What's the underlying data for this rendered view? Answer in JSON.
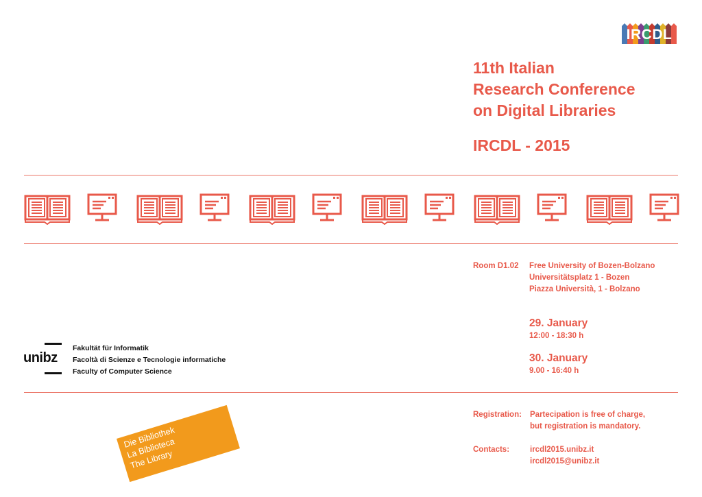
{
  "logo": {
    "text": "IRCDL",
    "stripe_colors": [
      "#4a7ab5",
      "#e8594a",
      "#f29a1c",
      "#7d3f8f",
      "#3a9c6e",
      "#c53c2e",
      "#2f5d8c",
      "#e0b22a",
      "#8c3b3b",
      "#e8594a"
    ]
  },
  "title": {
    "lines": [
      "11th Italian",
      "Research Conference",
      "on Digital Libraries"
    ],
    "subtitle": "IRCDL - 2015"
  },
  "icons": [
    "book-icon",
    "monitor-icon",
    "book-icon",
    "monitor-icon",
    "book-icon",
    "monitor-icon",
    "book-icon",
    "monitor-icon",
    "book-icon",
    "monitor-icon",
    "book-icon",
    "monitor-icon"
  ],
  "venue": {
    "room": "Room D1.02",
    "address": [
      "Free University of Bozen-Bolzano",
      "Universitätsplatz 1 - Bozen",
      "Piazza Università, 1 - Bolzano"
    ]
  },
  "dates": [
    {
      "day": "29. January",
      "time": "12:00 - 18:30 h"
    },
    {
      "day": "30. January",
      "time": "9.00 - 16:40 h"
    }
  ],
  "unibz": {
    "wordmark": "unibz",
    "faculty": [
      "Fakultät für Informatik",
      "Facoltà di Scienze e Tecnologie informatiche",
      "Faculty of Computer Science"
    ]
  },
  "library": [
    "Die Bibliothek",
    "La Biblioteca",
    "The Library"
  ],
  "registration": {
    "label": "Registration:",
    "lines": [
      "Partecipation is free of charge,",
      "but registration is mandatory."
    ]
  },
  "contacts": {
    "label": "Contacts:",
    "lines": [
      "ircdl2015.unibz.it",
      "ircdl2015@unibz.it"
    ]
  },
  "colors": {
    "accent": "#e8594a",
    "library_orange": "#f29a1c",
    "text_dark": "#111111"
  }
}
